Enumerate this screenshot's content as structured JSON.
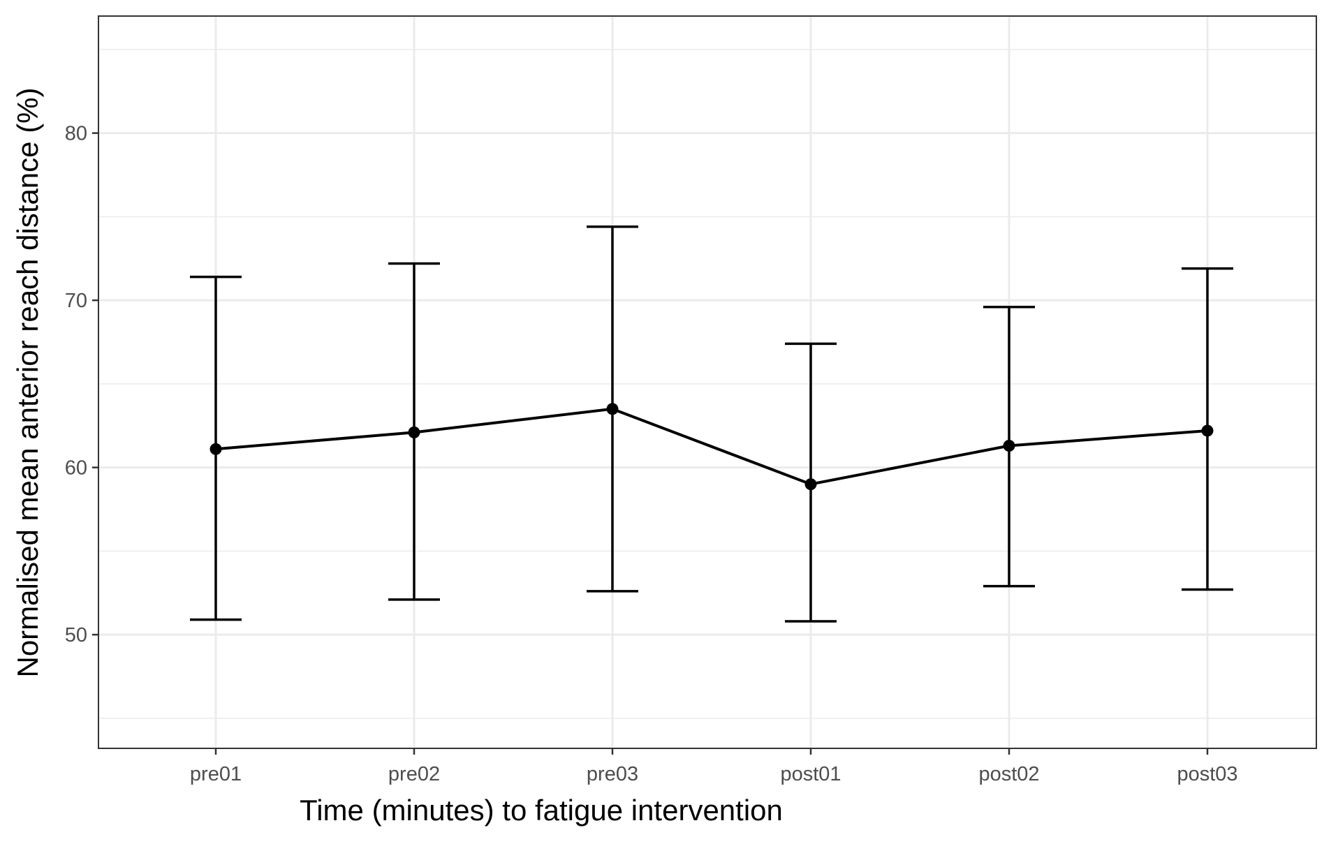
{
  "chart_data": {
    "type": "line",
    "title": "",
    "xlabel": "Time (minutes) to fatigue intervention",
    "ylabel": "Normalised mean anterior reach distance (%)",
    "categories": [
      "pre01",
      "pre02",
      "pre03",
      "post01",
      "post02",
      "post03"
    ],
    "series": [
      {
        "values": [
          61.1,
          62.1,
          63.5,
          59.0,
          61.3,
          62.2
        ],
        "error_lower": [
          50.9,
          52.1,
          52.6,
          50.8,
          52.9,
          52.7
        ],
        "error_upper": [
          71.4,
          72.2,
          74.4,
          67.4,
          69.6,
          71.9
        ]
      }
    ],
    "ylim": [
      43.2,
      87.0
    ],
    "yticks": [
      50,
      60,
      70,
      80
    ],
    "ytick_labels": [
      "50",
      "60",
      "70",
      "80"
    ],
    "grid": true,
    "legend": "none",
    "colors": {
      "series": "#000000",
      "grid": "#ebebeb",
      "tick_text": "#4d4d4d",
      "panel_border": "#333333"
    }
  }
}
